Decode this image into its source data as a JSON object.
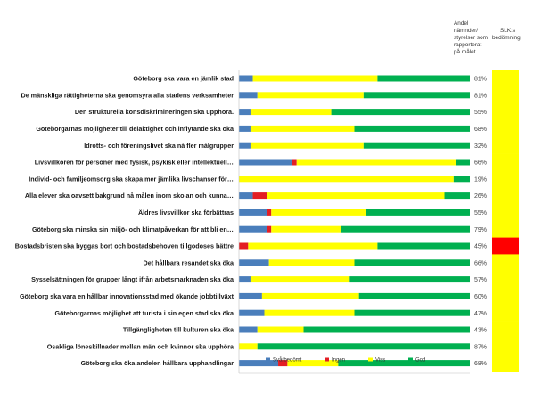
{
  "header": {
    "col1": [
      "Andel",
      "nämnder/",
      "styrelser som",
      "rapporterat",
      "på målet"
    ],
    "col2": [
      "SLK:s",
      "bedömning"
    ]
  },
  "colors": {
    "Svårbedömt": "#4a7ebb",
    "Ingen": "#e31e24",
    "Viss": "#ffff00",
    "God": "#00b050",
    "assessment_yellow": "#ffff00",
    "assessment_red": "#ff0000"
  },
  "chart_data": {
    "type": "bar",
    "orientation": "horizontal",
    "stacked": true,
    "normalized": true,
    "xlim": [
      0,
      100
    ],
    "grid": false,
    "legend_position": "bottom",
    "categories": [
      "Göteborg ska vara en jämlik stad",
      "De mänskliga rättigheterna ska genomsyra alla stadens verksamheter",
      "Den strukturella könsdiskrimineringen ska upphöra.",
      "Göteborgarnas möjligheter till delaktighet och inflytande ska öka",
      "Idrotts- och föreningslivet ska nå fler målgrupper",
      "Livsvillkoren för personer med fysisk, psykisk eller intellektuell…",
      "Individ- och familjeomsorg ska skapa mer jämlika livschanser för…",
      "Alla elever ska oavsett bakgrund nå målen inom skolan och kunna…",
      "Äldres livsvillkor ska förbättras",
      "Göteborg ska minska sin miljö- och klimatpåverkan för att bli en…",
      "Bostadsbristen ska byggas bort och bostadsbehoven tillgodoses bättre",
      "Det hållbara resandet ska öka",
      "Sysselsättningen för grupper långt ifrån arbetsmarknaden ska öka",
      "Göteborg ska vara en hållbar innovationsstad med ökande jobbtillväxt",
      "Göteborgarnas möjlighet att turista i sin egen stad ska öka",
      "Tillgängligheten till kulturen ska öka",
      "Osakliga löneskillnader mellan män och kvinnor ska upphöra",
      "Göteborg ska öka andelen hållbara upphandlingar"
    ],
    "series": [
      {
        "name": "Svårbedömt",
        "values": [
          6,
          8,
          5,
          5,
          5,
          23,
          0,
          6,
          12,
          12,
          0,
          13,
          5,
          10,
          11,
          8,
          0,
          17
        ]
      },
      {
        "name": "Ingen",
        "values": [
          0,
          0,
          0,
          0,
          0,
          2,
          0,
          6,
          2,
          2,
          4,
          0,
          0,
          0,
          0,
          0,
          0,
          4
        ]
      },
      {
        "name": "Viss",
        "values": [
          54,
          46,
          35,
          45,
          49,
          69,
          93,
          77,
          41,
          30,
          56,
          37,
          43,
          42,
          39,
          20,
          8,
          22
        ]
      },
      {
        "name": "God",
        "values": [
          40,
          46,
          60,
          50,
          46,
          6,
          7,
          11,
          45,
          56,
          40,
          50,
          52,
          48,
          50,
          72,
          92,
          57
        ]
      }
    ],
    "share_reported": [
      "81%",
      "81%",
      "55%",
      "68%",
      "32%",
      "66%",
      "19%",
      "26%",
      "55%",
      "79%",
      "45%",
      "66%",
      "57%",
      "60%",
      "47%",
      "43%",
      "87%",
      "68%"
    ],
    "slk_assessment": [
      "yellow",
      "yellow",
      "yellow",
      "yellow",
      "yellow",
      "yellow",
      "yellow",
      "yellow",
      "yellow",
      "yellow",
      "red",
      "yellow",
      "yellow",
      "yellow",
      "yellow",
      "yellow",
      "yellow",
      "yellow"
    ]
  }
}
